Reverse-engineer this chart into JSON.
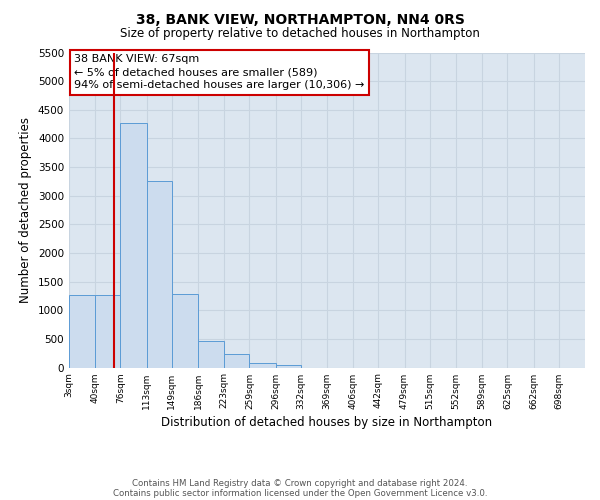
{
  "title": "38, BANK VIEW, NORTHAMPTON, NN4 0RS",
  "subtitle": "Size of property relative to detached houses in Northampton",
  "xlabel": "Distribution of detached houses by size in Northampton",
  "ylabel": "Number of detached properties",
  "bar_color": "#ccdcee",
  "bar_edge_color": "#5b9bd5",
  "grid_color": "#c8d4e0",
  "background_color": "#dce6f0",
  "vline_x": 67,
  "vline_color": "#cc0000",
  "annotation_line1": "38 BANK VIEW: 67sqm",
  "annotation_line2": "← 5% of detached houses are smaller (589)",
  "annotation_line3": "94% of semi-detached houses are larger (10,306) →",
  "annotation_box_color": "#ffffff",
  "annotation_box_edge_color": "#cc0000",
  "bin_edges": [
    3,
    40,
    76,
    113,
    149,
    186,
    223,
    259,
    296,
    332,
    369,
    406,
    442,
    479,
    515,
    552,
    589,
    625,
    662,
    698,
    735
  ],
  "bin_heights": [
    1270,
    1270,
    4270,
    3250,
    1280,
    470,
    230,
    85,
    45,
    0,
    0,
    0,
    0,
    0,
    0,
    0,
    0,
    0,
    0,
    0
  ],
  "ylim": [
    0,
    5500
  ],
  "yticks": [
    0,
    500,
    1000,
    1500,
    2000,
    2500,
    3000,
    3500,
    4000,
    4500,
    5000,
    5500
  ],
  "footer1": "Contains HM Land Registry data © Crown copyright and database right 2024.",
  "footer2": "Contains public sector information licensed under the Open Government Licence v3.0."
}
